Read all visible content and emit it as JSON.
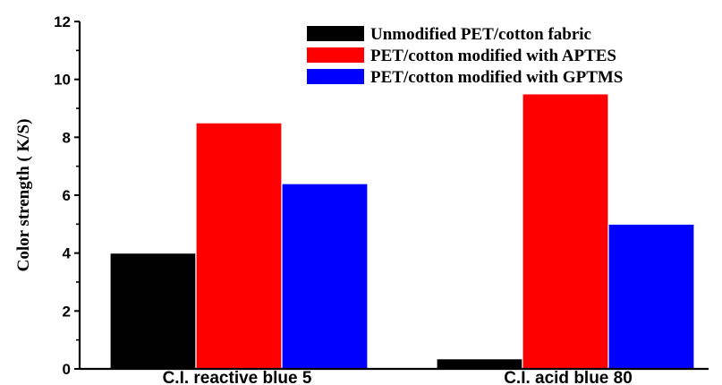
{
  "chart_data": {
    "type": "bar",
    "title": "",
    "xlabel": "",
    "ylabel": "Color strength ( K/S)",
    "ylim": [
      0,
      12
    ],
    "yticks": [
      "0",
      "2",
      "4",
      "6",
      "8",
      "10",
      "12"
    ],
    "categories": [
      "C.I. reactive blue 5",
      "C.I. acid blue 80"
    ],
    "series": [
      {
        "name": "Unmodified PET/cotton fabric",
        "color": "#000000",
        "values": [
          4.0,
          0.35
        ]
      },
      {
        "name": "PET/cotton modified with APTES",
        "color": "#ff0000",
        "values": [
          8.5,
          9.5
        ]
      },
      {
        "name": "PET/cotton modified with GPTMS",
        "color": "#0000ff",
        "values": [
          6.4,
          5.0
        ]
      }
    ],
    "legend_position": "top-right",
    "grid": false
  }
}
